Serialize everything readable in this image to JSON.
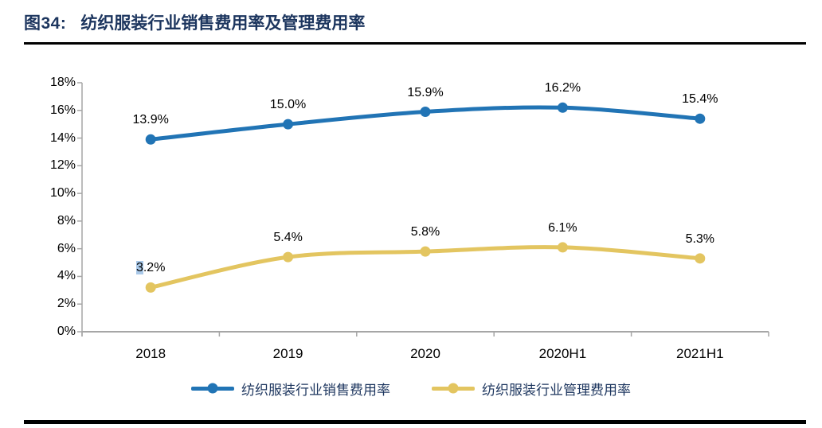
{
  "header": {
    "figure_label": "图34:",
    "title": "纺织服装行业销售费用率及管理费用率"
  },
  "chart_data": {
    "type": "line",
    "title": "纺织服装行业销售费用率及管理费用率",
    "categories": [
      "2018",
      "2019",
      "2020",
      "2020H1",
      "2021H1"
    ],
    "series": [
      {
        "name": "纺织服装行业销售费用率",
        "color": "#2174B5",
        "values": [
          13.9,
          15.0,
          15.9,
          16.2,
          15.4
        ],
        "labels": [
          "13.9%",
          "15.0%",
          "15.9%",
          "16.2%",
          "15.4%"
        ]
      },
      {
        "name": "纺织服装行业管理费用率",
        "color": "#E3C560",
        "values": [
          3.2,
          5.4,
          5.8,
          6.1,
          5.3
        ],
        "labels": [
          "3.2%",
          "5.4%",
          "5.8%",
          "6.1%",
          "5.3%"
        ]
      }
    ],
    "ylim": [
      0,
      18
    ],
    "ytick_step": 2,
    "ytick_labels": [
      "0%",
      "2%",
      "4%",
      "6%",
      "8%",
      "10%",
      "12%",
      "14%",
      "16%",
      "18%"
    ],
    "grid": false,
    "smoothed_lines": true,
    "legend_position": "bottom",
    "axis_color": "#A6A6A6",
    "text_color": "#000000",
    "label_highlight": {
      "series_index": 1,
      "point_index": 0,
      "char_count": 1,
      "color": "#A9C8E8"
    }
  },
  "style": {
    "title_color": "#1C355E",
    "rule_color": "#000000",
    "background": "#FFFFFF"
  }
}
